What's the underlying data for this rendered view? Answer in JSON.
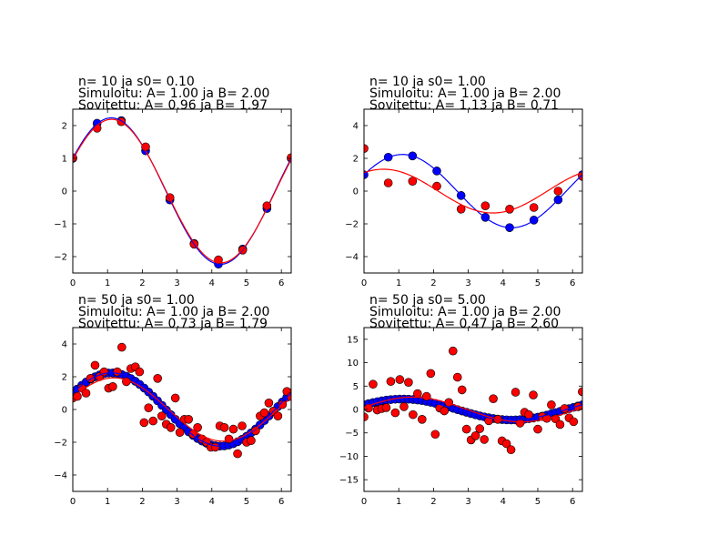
{
  "chart_data": [
    {
      "type": "scatter",
      "title_lines": [
        "n= 10 ja s0= 0.10",
        "Simuloitu: A= 1.00 ja B= 2.00",
        "Sovitettu: A= 0.96 ja B= 1.97"
      ],
      "xlim": [
        0,
        6.283
      ],
      "ylim": [
        -2.5,
        2.5
      ],
      "xticks": [
        0,
        1,
        2,
        3,
        4,
        5,
        6
      ],
      "yticks": [
        -2,
        -1,
        0,
        1,
        2
      ],
      "series": [
        {
          "kind": "points",
          "color": "#0000ff",
          "x": [
            0,
            0.698,
            1.396,
            2.094,
            2.793,
            3.491,
            4.189,
            4.887,
            5.585,
            6.283
          ],
          "y": [
            1.0,
            2.07,
            2.15,
            1.23,
            -0.27,
            -1.6,
            -2.23,
            -1.77,
            -0.53,
            1.0
          ]
        },
        {
          "kind": "points",
          "color": "#ff0000",
          "x": [
            0,
            0.698,
            1.396,
            2.094,
            2.793,
            3.491,
            4.189,
            4.887,
            5.585,
            6.283
          ],
          "y": [
            1.02,
            1.92,
            2.12,
            1.35,
            -0.2,
            -1.62,
            -2.1,
            -1.8,
            -0.45,
            1.02
          ]
        },
        {
          "kind": "line",
          "color": "#0000ff",
          "A": 1.0,
          "B": 2.0
        },
        {
          "kind": "line",
          "color": "#ff0000",
          "A": 0.96,
          "B": 1.97
        }
      ]
    },
    {
      "type": "scatter",
      "title_lines": [
        "n= 10 ja s0= 1.00",
        "Simuloitu: A= 1.00 ja B= 2.00",
        "Sovitettu: A= 1.13 ja B= 0.71"
      ],
      "xlim": [
        0,
        6.283
      ],
      "ylim": [
        -5,
        5
      ],
      "xticks": [
        0,
        1,
        2,
        3,
        4,
        5,
        6
      ],
      "yticks": [
        -4,
        -2,
        0,
        2,
        4
      ],
      "series": [
        {
          "kind": "points",
          "color": "#0000ff",
          "x": [
            0,
            0.698,
            1.396,
            2.094,
            2.793,
            3.491,
            4.189,
            4.887,
            5.585,
            6.283
          ],
          "y": [
            1.0,
            2.07,
            2.15,
            1.23,
            -0.27,
            -1.6,
            -2.23,
            -1.77,
            -0.53,
            1.0
          ]
        },
        {
          "kind": "points",
          "color": "#ff0000",
          "x": [
            0,
            0.698,
            1.396,
            2.094,
            2.793,
            3.491,
            4.189,
            4.887,
            5.585,
            6.283
          ],
          "y": [
            2.6,
            0.5,
            0.6,
            0.3,
            -1.1,
            -0.9,
            -1.1,
            -1.0,
            0.0,
            0.9
          ]
        },
        {
          "kind": "line",
          "color": "#0000ff",
          "A": 1.0,
          "B": 2.0
        },
        {
          "kind": "line",
          "color": "#ff0000",
          "A": 1.13,
          "B": 0.71
        }
      ]
    },
    {
      "type": "scatter",
      "title_lines": [
        "n= 50 ja s0= 1.00",
        "Simuloitu: A= 1.00 ja B= 2.00",
        "Sovitettu: A= 0.73 ja B= 1.79"
      ],
      "xlim": [
        0,
        6.283
      ],
      "ylim": [
        -5,
        5
      ],
      "xticks": [
        0,
        1,
        2,
        3,
        4,
        5,
        6
      ],
      "yticks": [
        -4,
        -2,
        0,
        2,
        4
      ],
      "series": [
        {
          "kind": "points",
          "color": "#0000ff",
          "n": 50,
          "A": 1.0,
          "B": 2.0
        },
        {
          "kind": "points",
          "color": "#ff0000",
          "x": [
            0.0,
            0.13,
            0.26,
            0.38,
            0.51,
            0.64,
            0.77,
            0.9,
            1.03,
            1.15,
            1.28,
            1.41,
            1.54,
            1.67,
            1.8,
            1.92,
            2.05,
            2.18,
            2.31,
            2.44,
            2.56,
            2.69,
            2.82,
            2.95,
            3.08,
            3.21,
            3.33,
            3.46,
            3.59,
            3.72,
            3.85,
            3.97,
            4.1,
            4.23,
            4.36,
            4.49,
            4.62,
            4.74,
            4.87,
            5.0,
            5.13,
            5.26,
            5.39,
            5.51,
            5.64,
            5.77,
            5.9,
            6.03,
            6.16,
            6.28
          ],
          "y": [
            0.7,
            0.8,
            1.3,
            1.0,
            1.9,
            2.7,
            2.0,
            2.3,
            1.3,
            1.4,
            2.3,
            3.8,
            1.7,
            2.5,
            2.6,
            2.3,
            -0.8,
            0.1,
            -0.7,
            1.9,
            -0.4,
            -0.9,
            -1.1,
            0.7,
            -1.4,
            -0.6,
            -0.6,
            -1.5,
            -1.1,
            -1.8,
            -2.0,
            -2.3,
            -2.3,
            -1.0,
            -1.1,
            -1.8,
            -1.2,
            -2.7,
            -1.0,
            -2.0,
            -1.9,
            -1.3,
            -0.4,
            -0.2,
            0.4,
            -0.1,
            -0.4,
            0.3,
            1.1,
            0.8
          ]
        },
        {
          "kind": "line",
          "color": "#0000ff",
          "A": 1.0,
          "B": 2.0
        },
        {
          "kind": "line",
          "color": "#ff0000",
          "A": 0.73,
          "B": 1.79
        }
      ]
    },
    {
      "type": "scatter",
      "title_lines": [
        "n= 50 ja s0= 5.00",
        "Simuloitu: A= 1.00 ja B= 2.00",
        "Sovitettu: A= 0.47 ja B= 2.60"
      ],
      "xlim": [
        0,
        6.283
      ],
      "ylim": [
        -17.5,
        17.5
      ],
      "xticks": [
        0,
        1,
        2,
        3,
        4,
        5,
        6
      ],
      "yticks": [
        -15,
        -10,
        -5,
        0,
        5,
        10,
        15
      ],
      "series": [
        {
          "kind": "points",
          "color": "#0000ff",
          "n": 50,
          "A": 1.0,
          "B": 2.0
        },
        {
          "kind": "points",
          "color": "#ff0000",
          "x": [
            0.0,
            0.13,
            0.26,
            0.38,
            0.51,
            0.64,
            0.77,
            0.9,
            1.03,
            1.15,
            1.28,
            1.41,
            1.54,
            1.67,
            1.8,
            1.92,
            2.05,
            2.18,
            2.31,
            2.44,
            2.56,
            2.69,
            2.82,
            2.95,
            3.08,
            3.21,
            3.33,
            3.46,
            3.59,
            3.72,
            3.85,
            3.97,
            4.1,
            4.23,
            4.36,
            4.49,
            4.62,
            4.74,
            4.87,
            5.0,
            5.13,
            5.26,
            5.39,
            5.51,
            5.64,
            5.77,
            5.9,
            6.03,
            6.16,
            6.28
          ],
          "y": [
            -1.6,
            0.3,
            5.4,
            -0.1,
            0.2,
            0.4,
            6.0,
            -0.7,
            6.4,
            0.6,
            5.8,
            -1.1,
            3.4,
            -2.1,
            2.8,
            7.7,
            -5.3,
            0.3,
            -0.3,
            1.5,
            12.5,
            6.9,
            4.2,
            -4.2,
            -6.5,
            -5.6,
            -4.1,
            -6.4,
            -2.4,
            2.3,
            -2.1,
            -6.7,
            -7.3,
            -8.6,
            3.7,
            -2.9,
            -0.6,
            -1.1,
            3.1,
            -4.2,
            -1.5,
            -1.9,
            1.0,
            -2.0,
            -3.2,
            0.2,
            -1.8,
            -2.6,
            0.6,
            3.8
          ]
        },
        {
          "kind": "line",
          "color": "#0000ff",
          "A": 1.0,
          "B": 2.0
        },
        {
          "kind": "line",
          "color": "#ff0000",
          "A": 0.47,
          "B": 2.6
        }
      ]
    }
  ]
}
